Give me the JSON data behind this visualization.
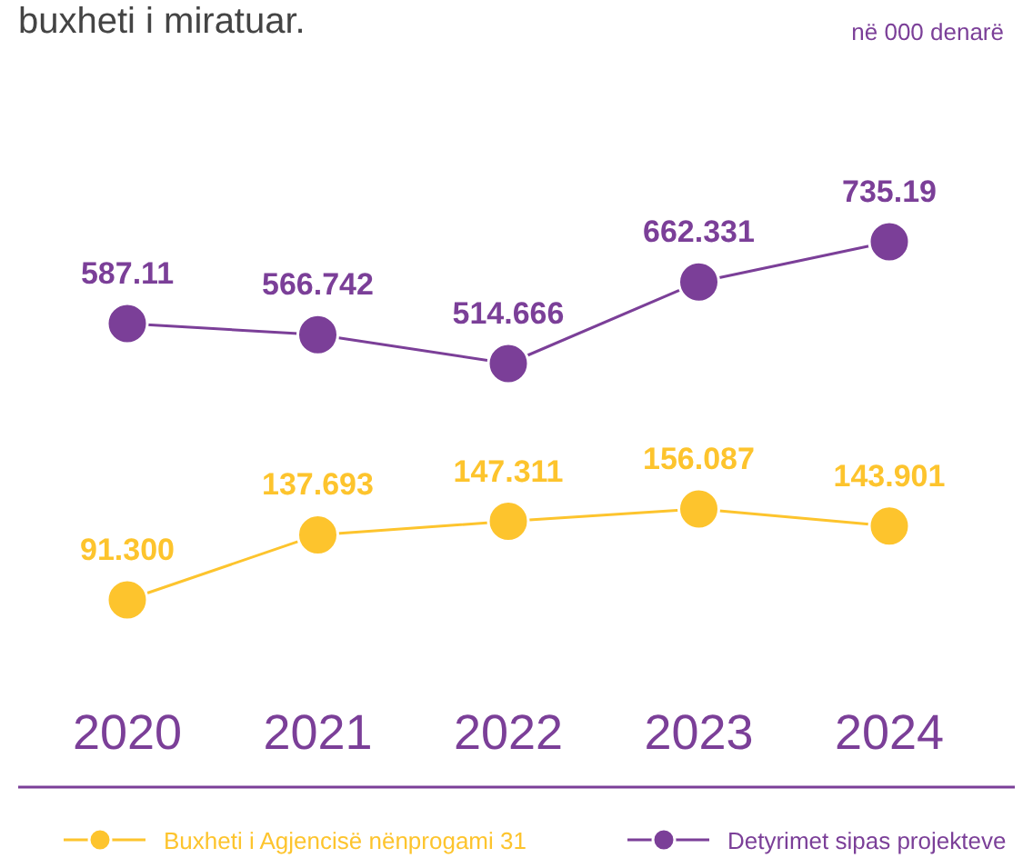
{
  "chart_data": [
    {
      "type": "line",
      "title": "buxheti i miratuar.",
      "subtitle": "në 000 denarë",
      "categories": [
        null,
        null,
        null,
        null,
        null
      ],
      "tick_labels": false,
      "marker": "circle",
      "line_style": "solid",
      "legend": "bottom right",
      "series": [
        {
          "name": "Detyrimet sipas projekteve",
          "color": "#7b3f98",
          "values": [
            587.11,
            566.742,
            514.666,
            662.331,
            735.19
          ],
          "value_labels": [
            "587.11",
            "566.742",
            "514.666",
            "662.331",
            "735.19"
          ]
        }
      ]
    },
    {
      "type": "line",
      "categories": [
        "2020",
        "2021",
        "2022",
        "2023",
        "2024"
      ],
      "tick_labels": "x",
      "marker": "circle",
      "line_style": "solid",
      "legend": "bottom left",
      "series": [
        {
          "name": "Buxheti i Agjencisë nënprogami 31",
          "color": "#fdc42d",
          "values": [
            91.3,
            137.693,
            147.311,
            156.087,
            143.901
          ],
          "value_labels": [
            "91.300",
            "137.693",
            "147.311",
            "156.087",
            "143.901"
          ]
        }
      ]
    }
  ]
}
